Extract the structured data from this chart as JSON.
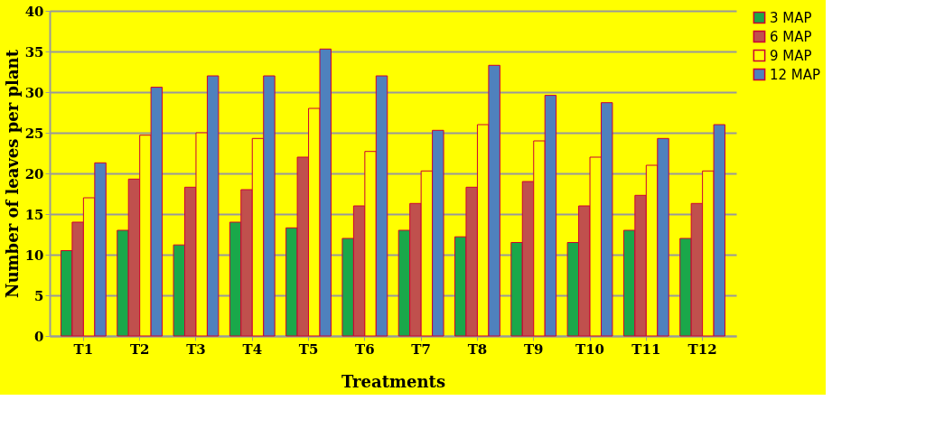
{
  "chart_data": {
    "type": "bar",
    "xlabel": "Treatments",
    "ylabel": "Number of leaves per plant",
    "categories": [
      "T1",
      "T2",
      "T3",
      "T4",
      "T5",
      "T6",
      "T7",
      "T8",
      "T9",
      "T10",
      "T11",
      "T12"
    ],
    "series": [
      {
        "name": "3 MAP",
        "color": "#1aa84a",
        "values": [
          10.5,
          13,
          11.2,
          14,
          13.3,
          12,
          13,
          12.2,
          11.5,
          11.5,
          13,
          12
        ]
      },
      {
        "name": "6 MAP",
        "color": "#c0504d",
        "values": [
          14,
          19.3,
          18.3,
          18,
          22,
          16,
          16.3,
          18.3,
          19,
          16,
          17.3,
          16.3
        ]
      },
      {
        "name": "9 MAP",
        "color": "#ffff00",
        "values": [
          17,
          24.7,
          25,
          24.3,
          28,
          22.7,
          20.3,
          26,
          24,
          22,
          21,
          20.3
        ]
      },
      {
        "name": "12 MAP",
        "color": "#4f81bd",
        "values": [
          21.3,
          30.6,
          32,
          32,
          35.3,
          32,
          25.3,
          33.3,
          29.6,
          28.7,
          24.3,
          26
        ]
      }
    ],
    "ylim": [
      0,
      40
    ],
    "yticks": [
      0,
      5,
      10,
      15,
      20,
      25,
      30,
      35,
      40
    ],
    "grid": "y",
    "legend": "right"
  }
}
